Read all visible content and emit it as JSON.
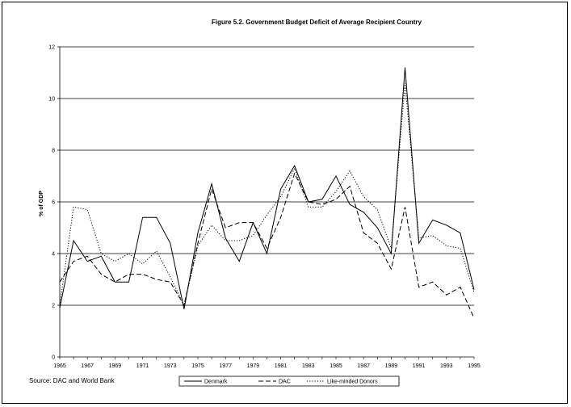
{
  "chart_data": {
    "type": "line",
    "title": "Figure 5.2. Government Budget Deficit of Average Recipient Country",
    "xlabel": "",
    "ylabel": "% of GDP",
    "ylim": [
      0,
      12
    ],
    "xlim": [
      1965,
      1995
    ],
    "yticks": [
      "0",
      "2",
      "4",
      "6",
      "8",
      "10",
      "12"
    ],
    "xticks": [
      "1965",
      "1967",
      "1969",
      "1971",
      "1973",
      "1975",
      "1977",
      "1979",
      "1981",
      "1983",
      "1985",
      "1987",
      "1989",
      "1991",
      "1993",
      "1995"
    ],
    "grid": "horizontal",
    "legend_position": "bottom",
    "x": [
      1965,
      1966,
      1967,
      1968,
      1969,
      1970,
      1971,
      1972,
      1973,
      1974,
      1975,
      1976,
      1977,
      1978,
      1979,
      1980,
      1981,
      1982,
      1983,
      1984,
      1985,
      1986,
      1987,
      1988,
      1989,
      1990,
      1991,
      1992,
      1993,
      1994,
      1995
    ],
    "series": [
      {
        "name": "Denmark",
        "style": "solid",
        "values": [
          1.9,
          4.5,
          3.7,
          3.9,
          2.9,
          2.9,
          5.4,
          5.4,
          4.4,
          1.85,
          4.8,
          6.7,
          4.6,
          3.7,
          5.2,
          4.0,
          6.5,
          7.4,
          6.0,
          6.1,
          7.0,
          5.9,
          5.6,
          5.0,
          4.0,
          11.2,
          4.4,
          5.3,
          5.1,
          4.8,
          2.6
        ]
      },
      {
        "name": "DAC",
        "style": "dashed",
        "values": [
          2.9,
          3.7,
          3.9,
          3.2,
          2.9,
          3.2,
          3.2,
          3.0,
          2.9,
          2.0,
          4.4,
          6.5,
          5.0,
          5.2,
          5.2,
          4.2,
          5.4,
          7.1,
          6.0,
          5.9,
          6.1,
          6.6,
          4.8,
          4.4,
          3.4,
          5.8,
          2.7,
          2.9,
          2.4,
          2.7,
          1.5
        ]
      },
      {
        "name": "Like-minded Donors",
        "style": "dotted",
        "values": [
          2.0,
          5.8,
          5.7,
          4.0,
          3.7,
          4.0,
          3.6,
          4.1,
          3.1,
          2.0,
          4.3,
          5.1,
          4.5,
          4.5,
          4.7,
          5.5,
          6.2,
          7.3,
          5.8,
          5.8,
          6.4,
          7.2,
          6.2,
          5.7,
          4.2,
          10.6,
          4.6,
          4.7,
          4.3,
          4.2,
          2.5
        ]
      }
    ]
  },
  "source": "Source: DAC and World Bank"
}
